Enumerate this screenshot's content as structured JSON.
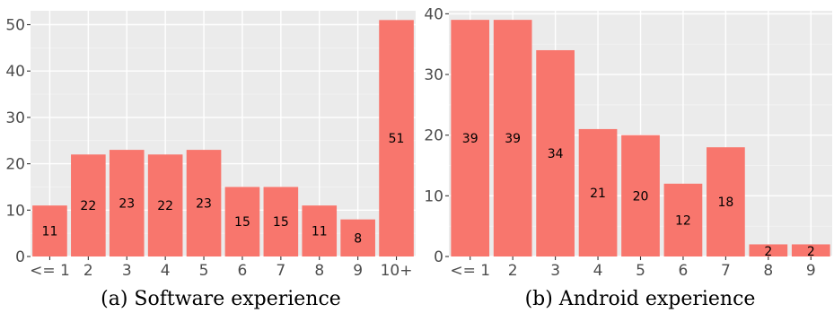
{
  "chart_data": [
    {
      "type": "bar",
      "caption": "(a) Software experience",
      "categories": [
        "<= 1",
        "2",
        "3",
        "4",
        "5",
        "6",
        "7",
        "8",
        "9",
        "10+"
      ],
      "values": [
        11,
        22,
        23,
        22,
        23,
        15,
        15,
        11,
        8,
        51
      ],
      "ylim": [
        0,
        53
      ],
      "yticks": [
        0,
        10,
        20,
        30,
        40,
        50
      ],
      "grid": true,
      "bar_color": "#f8766d",
      "panel_color": "#ebebeb"
    },
    {
      "type": "bar",
      "caption": "(b) Android experience",
      "categories": [
        "<= 1",
        "2",
        "3",
        "4",
        "5",
        "6",
        "7",
        "8",
        "9"
      ],
      "values": [
        39,
        39,
        34,
        21,
        20,
        12,
        18,
        2,
        2
      ],
      "ylim": [
        0,
        40.5
      ],
      "yticks": [
        0,
        10,
        20,
        30,
        40
      ],
      "grid": true,
      "bar_color": "#f8766d",
      "panel_color": "#ebebeb"
    }
  ]
}
